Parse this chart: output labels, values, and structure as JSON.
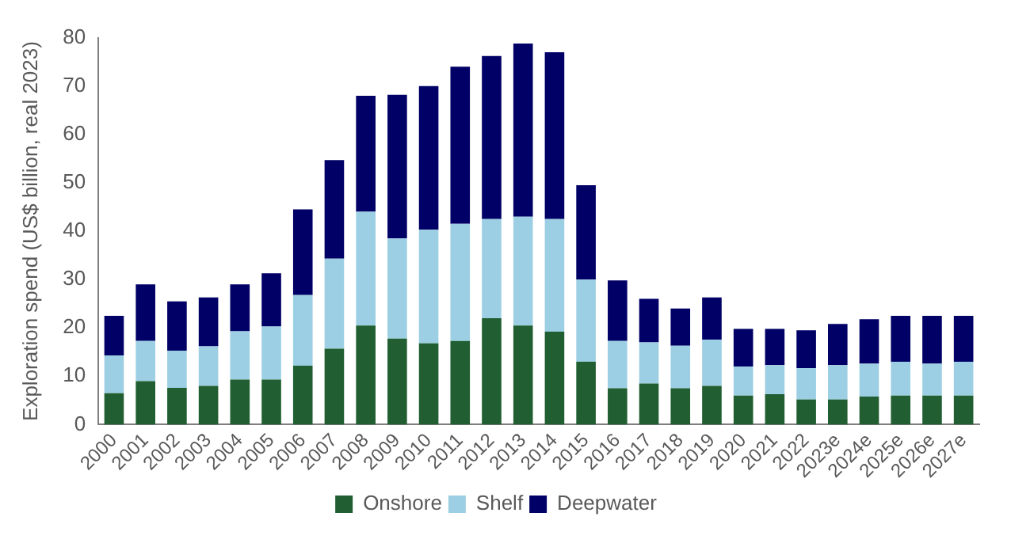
{
  "chart_data": {
    "type": "bar",
    "stacked": true,
    "ylabel": "Exploration spend (US$ billion, real 2023)",
    "categories": [
      "2000",
      "2001",
      "2002",
      "2003",
      "2004",
      "2005",
      "2006",
      "2007",
      "2008",
      "2009",
      "2010",
      "2011",
      "2012",
      "2013",
      "2014",
      "2015",
      "2016",
      "2017",
      "2018",
      "2019",
      "2020",
      "2021",
      "2022",
      "2023e",
      "2024e",
      "2025e",
      "2026e",
      "2027e"
    ],
    "series": [
      {
        "name": "Onshore",
        "color": "#215f32",
        "values": [
          6.5,
          9,
          7.6,
          8,
          9.3,
          9.3,
          12.2,
          15.7,
          20.5,
          17.8,
          16.8,
          17.3,
          22,
          20.5,
          19.2,
          13,
          7.5,
          8.5,
          7.5,
          8,
          6,
          6.3,
          5.2,
          5.2,
          5.8,
          6,
          6,
          6
        ]
      },
      {
        "name": "Shelf",
        "color": "#9ccfe3",
        "values": [
          7.8,
          8.3,
          7.7,
          8.2,
          10,
          11,
          14.6,
          18.6,
          23.5,
          20.7,
          23.5,
          24.2,
          20.5,
          22.5,
          23.3,
          17,
          9.8,
          8.5,
          8.8,
          9.6,
          6,
          6,
          6.5,
          7.1,
          6.8,
          7,
          6.6,
          7
        ]
      },
      {
        "name": "Deepwater",
        "color": "#000066",
        "values": [
          8.2,
          11.7,
          10.2,
          10.1,
          9.7,
          11,
          17.7,
          20.4,
          24,
          29.7,
          29.7,
          32.5,
          33.7,
          35.8,
          34.5,
          19.5,
          12.5,
          9,
          7.7,
          8.7,
          7.8,
          7.5,
          7.8,
          8.5,
          9.2,
          9.5,
          9.9,
          9.5
        ]
      }
    ],
    "ylim": [
      0,
      80
    ],
    "yticks": [
      0,
      10,
      20,
      30,
      40,
      50,
      60,
      70,
      80
    ],
    "grid": false,
    "legend": "bottom"
  }
}
